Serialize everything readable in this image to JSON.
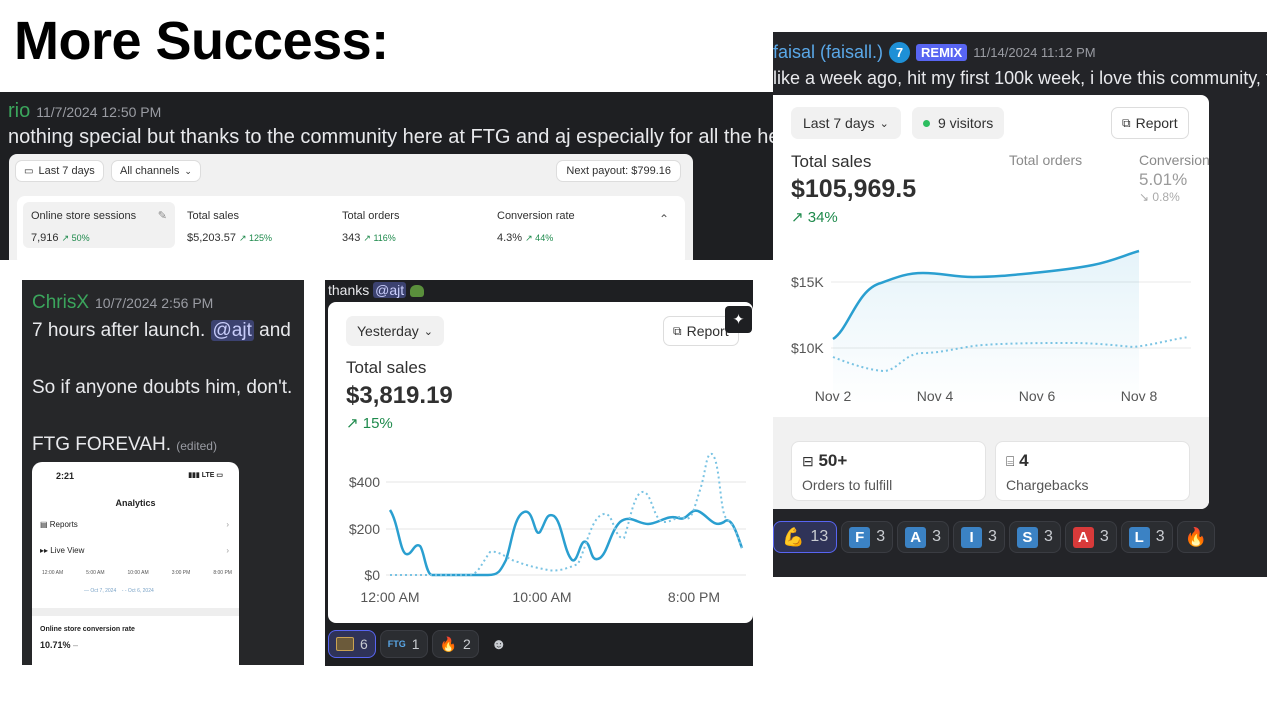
{
  "heading": "More Success:",
  "rio": {
    "username": "rio",
    "timestamp": "11/7/2024 12:50 PM",
    "message": "nothing special but thanks to the community here at FTG and aj especially for all the help!",
    "filter_date": "Last 7 days",
    "filter_channel": "All channels",
    "payout": "Next payout: $799.16",
    "metrics": [
      {
        "label": "Online store sessions",
        "value": "7,916",
        "change": "↗ 50%"
      },
      {
        "label": "Total sales",
        "value": "$5,203.57",
        "change": "↗ 125%"
      },
      {
        "label": "Total orders",
        "value": "343",
        "change": "↗ 116%"
      },
      {
        "label": "Conversion rate",
        "value": "4.3%",
        "change": "↗ 44%"
      }
    ]
  },
  "chrisx": {
    "username": "ChrisX",
    "timestamp": "10/7/2024 2:56 PM",
    "line1_pre": "7 hours after launch. ",
    "mention": "@ajt",
    "line1_post": " and",
    "line2": "So if anyone doubts him, don't.",
    "line3": "FTG FOREVAH.",
    "edited": "(edited)",
    "phone": {
      "time": "2:21",
      "status": "LTE",
      "title": "Analytics",
      "rows": [
        "Reports",
        "Live View"
      ],
      "axis": [
        "12:00 AM",
        "5:00 AM",
        "10:00 AM",
        "3:00 PM",
        "8:00 PM"
      ],
      "legend1": "Oct 7, 2024",
      "legend2": "Oct 6, 2024",
      "metric_label": "Online store conversion rate",
      "metric_value": "10.71%",
      "metric_change": "–"
    }
  },
  "mid": {
    "message_pre": "thanks ",
    "mention": "@ajt",
    "filter": "Yesterday",
    "report": "Report",
    "total_label": "Total sales",
    "total_value": "$3,819.19",
    "change": "↗ 15%",
    "y_ticks": [
      "$400",
      "$200",
      "$0"
    ],
    "x_ticks": [
      "12:00 AM",
      "10:00 AM",
      "8:00 PM"
    ],
    "reactions": [
      {
        "icon": "monitor-emoji",
        "count": "6"
      },
      {
        "icon": "FTG",
        "count": "1"
      },
      {
        "icon": "fire-emoji",
        "count": "2"
      }
    ]
  },
  "faisal": {
    "username": "faisal (faisall.)",
    "badge_num": "7",
    "tag": "REMIX",
    "timestamp": "11/14/2024 11:12 PM",
    "message": "like a week ago, hit my first 100k week, i love this community, t",
    "filter": "Last 7 days",
    "visitors": "9 visitors",
    "report": "Report",
    "total_label": "Total sales",
    "total_value": "$105,969.5",
    "change": "↗ 34%",
    "orders_label": "Total orders",
    "conv_label": "Conversion",
    "conv_value": "5.01%",
    "conv_change": "↘ 0.8%",
    "y_ticks": [
      "$15K",
      "$10K"
    ],
    "x_ticks": [
      "Nov 2",
      "Nov 4",
      "Nov 6",
      "Nov 8"
    ],
    "fulfill_value": "50+",
    "fulfill_label": "Orders to fulfill",
    "charge_value": "4",
    "charge_label": "Chargebacks",
    "reactions": [
      {
        "letter": "💪",
        "count": "13",
        "color": ""
      },
      {
        "letter": "F",
        "count": "3",
        "color": "#3b82c4"
      },
      {
        "letter": "A",
        "count": "3",
        "color": "#3b82c4"
      },
      {
        "letter": "I",
        "count": "3",
        "color": "#3b82c4"
      },
      {
        "letter": "S",
        "count": "3",
        "color": "#3b82c4"
      },
      {
        "letter": "A",
        "count": "3",
        "color": "#d83a3a"
      },
      {
        "letter": "L",
        "count": "3",
        "color": "#3b82c4"
      }
    ]
  },
  "colors": {
    "chart_line": "#2a9fd0",
    "chart_dotted": "#79c3e3",
    "positive": "#1e8a4c",
    "username_green": "#3ba55c",
    "username_blue": "#5aa8e8",
    "mention_bg": "#3c4270",
    "mention_fg": "#c9cdfb"
  }
}
